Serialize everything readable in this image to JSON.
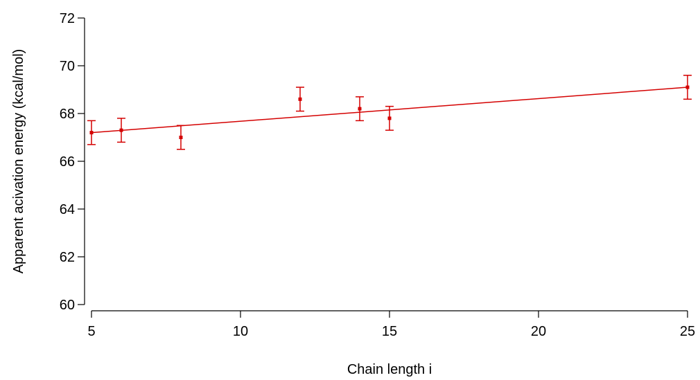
{
  "chart_data": {
    "type": "scatter",
    "title": "",
    "xlabel": "Chain length i",
    "ylabel": "Apparent acivation energy (kcal/mol)",
    "xlim": [
      5,
      25
    ],
    "ylim": [
      60,
      72
    ],
    "x_ticks": [
      5,
      10,
      15,
      20,
      25
    ],
    "y_ticks": [
      60,
      62,
      64,
      66,
      68,
      70,
      72
    ],
    "grid": false,
    "legend": "none",
    "series": [
      {
        "points": [
          {
            "x": 5,
            "y": 67.2,
            "err": 0.5
          },
          {
            "x": 6,
            "y": 67.3,
            "err": 0.5
          },
          {
            "x": 8,
            "y": 67.0,
            "err": 0.5
          },
          {
            "x": 12,
            "y": 68.6,
            "err": 0.5
          },
          {
            "x": 14,
            "y": 68.2,
            "err": 0.5
          },
          {
            "x": 15,
            "y": 67.8,
            "err": 0.5
          },
          {
            "x": 25,
            "y": 69.1,
            "err": 0.5
          }
        ]
      }
    ],
    "fit_line": {
      "x": [
        5,
        25
      ],
      "y": [
        67.2,
        69.1
      ]
    },
    "colors": {
      "data": "#d40000",
      "axes": "#000000"
    }
  }
}
